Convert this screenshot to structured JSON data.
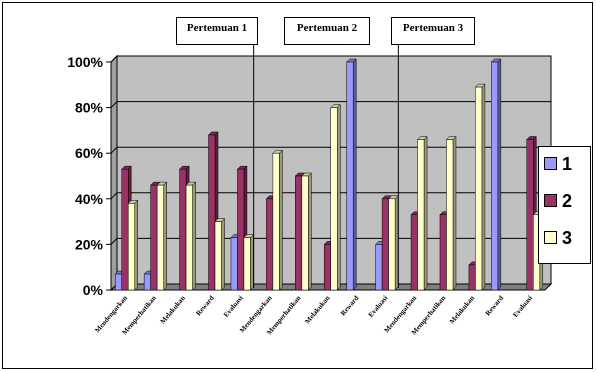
{
  "chart_data": {
    "type": "bar",
    "categories": [
      "Mendengarkan",
      "Memperhatikan",
      "Melakukan",
      "Reward",
      "Evaluasi",
      "Mendengarkan",
      "Memperhatikan",
      "Melakukan",
      "Reward",
      "Evaluasi",
      "Mendengarkan",
      "Memperhatikan",
      "Melakukan",
      "Reward",
      "Evaluasi"
    ],
    "series": [
      {
        "name": "1",
        "color": "#9999ff",
        "values": [
          7,
          7,
          0,
          0,
          23,
          0,
          0,
          0,
          100,
          20,
          0,
          0,
          0,
          100,
          0
        ]
      },
      {
        "name": "2",
        "color": "#993366",
        "values": [
          53,
          46,
          53,
          68,
          53,
          40,
          50,
          20,
          0,
          40,
          33,
          33,
          11,
          0,
          66
        ]
      },
      {
        "name": "3",
        "color": "#ffffcc",
        "values": [
          38,
          46,
          46,
          30,
          23,
          60,
          50,
          80,
          0,
          40,
          66,
          66,
          89,
          0,
          33
        ]
      }
    ],
    "yticks": [
      "0%",
      "20%",
      "40%",
      "60%",
      "80%",
      "100%"
    ],
    "ylim": [
      0,
      100
    ],
    "groups": [
      "Pertemuan 1",
      "Pertemuan 2",
      "Pertemuan 3"
    ],
    "grid": true,
    "legend_position": "right",
    "plot_background": "#c0c0c0"
  }
}
